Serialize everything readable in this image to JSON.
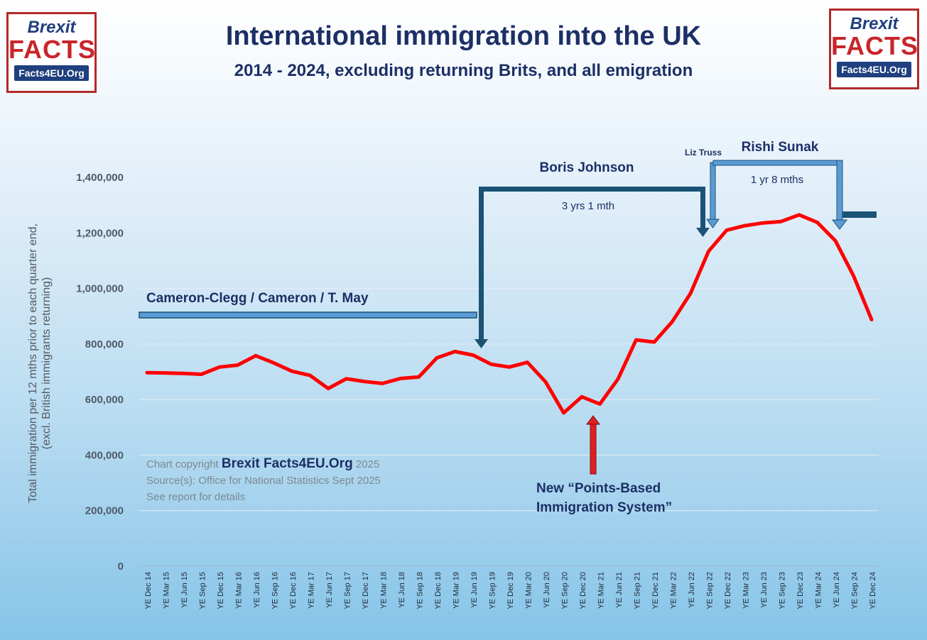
{
  "header": {
    "title": "International immigration into the UK",
    "subtitle": "2014 - 2024, excluding returning Brits, and all emigration"
  },
  "logo": {
    "top_text": "Brexit",
    "main_text": "FACTS",
    "url_text": "Facts4EU.Org"
  },
  "credit": {
    "line1_prefix": "Chart copyright ",
    "line1_brand": "Brexit Facts4EU.Org",
    "line1_suffix": " 2025",
    "line2": "Source(s): Office for National Statistics Sept 2025",
    "line3": "See report for details"
  },
  "colors": {
    "series_line": "#ff0000",
    "period_bar": "#1b5275",
    "period_bar_light": "#5b9bd5",
    "title_text": "#1c2f66",
    "points_arrow": "#e02020"
  },
  "chart_data": {
    "type": "line",
    "title": "International immigration into the UK",
    "subtitle": "2014 - 2024, excluding returning Brits, and all emigration",
    "ylabel_line1": "Total immigration per 12 mths prior to each quarter end,",
    "ylabel_line2": "(excl. British immigrants returning)",
    "ylim": [
      0,
      1400000
    ],
    "yticks": [
      "0",
      "200,000",
      "400,000",
      "600,000",
      "800,000",
      "1,000,000",
      "1,200,000",
      "1,400,000"
    ],
    "grid": true,
    "categories": [
      "YE Dec 14",
      "YE Mar 15",
      "YE Jun 15",
      "YE Sep 15",
      "YE Dec 15",
      "YE Mar 16",
      "YE Jun 16",
      "YE Sep 16",
      "YE Dec 16",
      "YE Mar 17",
      "YE Jun 17",
      "YE Sep 17",
      "YE Dec 17",
      "YE Mar 18",
      "YE Jun 18",
      "YE Sep 18",
      "YE Dec 18",
      "YE Mar 19",
      "YE Jun 19",
      "YE Sep 19",
      "YE Dec 19",
      "YE Mar 20",
      "YE Jun 20",
      "YE Sep 20",
      "YE Dec 20",
      "YE Mar 21",
      "YE Jun 21",
      "YE Sep 21",
      "YE Dec 21",
      "YE Mar 22",
      "YE Jun 22",
      "YE Sep 22",
      "YE Dec 22",
      "YE Mar 23",
      "YE Jun 23",
      "YE Sep 23",
      "YE Dec 23",
      "YE Mar 24",
      "YE Jun 24",
      "YE Sep 24",
      "YE Dec 24"
    ],
    "series": [
      {
        "values": [
          697000,
          696000,
          694000,
          691000,
          717000,
          724000,
          758000,
          732000,
          702000,
          687000,
          640000,
          675000,
          665000,
          658000,
          676000,
          681000,
          750000,
          773000,
          760000,
          727000,
          717000,
          734000,
          664000,
          552000,
          610000,
          584000,
          674000,
          815000,
          807000,
          881000,
          982000,
          1134000,
          1210000,
          1226000,
          1236000,
          1241000,
          1265000,
          1238000,
          1172000,
          1046000,
          888000
        ]
      }
    ],
    "annotations": {
      "cameron_label": "Cameron-Clegg / Cameron / T. May",
      "johnson_label": "Boris Johnson",
      "johnson_duration": "3 yrs 1 mth",
      "truss_label": "Liz Truss",
      "sunak_label": "Rishi Sunak",
      "sunak_duration": "1 yr 8 mths",
      "pbs_line1": "New “Points-Based",
      "pbs_line2": "Immigration System”"
    }
  }
}
